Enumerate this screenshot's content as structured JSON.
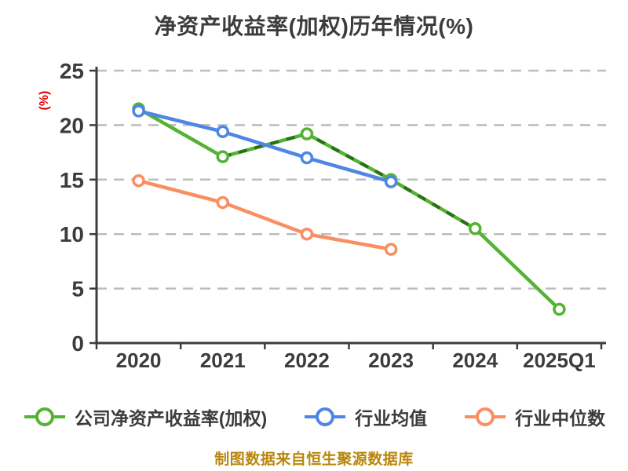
{
  "chart_data": {
    "type": "line",
    "title": "净资产收益率(加权)历年情况(%)",
    "ylabel": "(%)",
    "ylabel_color": "#e60000",
    "categories": [
      "2020",
      "2021",
      "2022",
      "2023",
      "2024",
      "2025Q1"
    ],
    "series": [
      {
        "name": "公司净资产收益率(加权)",
        "color": "#53b332",
        "values": [
          21.5,
          17.1,
          19.2,
          15.0,
          10.5,
          3.1
        ],
        "dash_overlay": {
          "from_index": 1,
          "to_index": 4,
          "color": "#2b6e18"
        }
      },
      {
        "name": "行业均值",
        "color": "#4e86e4",
        "values": [
          21.3,
          19.4,
          17.0,
          14.8,
          null,
          null
        ]
      },
      {
        "name": "行业中位数",
        "color": "#f88e61",
        "values": [
          14.9,
          12.9,
          10.0,
          8.6,
          null,
          null
        ]
      }
    ],
    "ylim": [
      0,
      25
    ],
    "ytick_step": 5,
    "grid": "horizontal-dashed",
    "grid_color": "#bdbdbd",
    "axis_color": "#3c3c3c",
    "tick_label_color": "#3c3c3c",
    "legend_position": "bottom",
    "marker": "white-filled-circle"
  },
  "footer": {
    "source_note": "制图数据来自恒生聚源数据库",
    "color": "#b8860b"
  }
}
